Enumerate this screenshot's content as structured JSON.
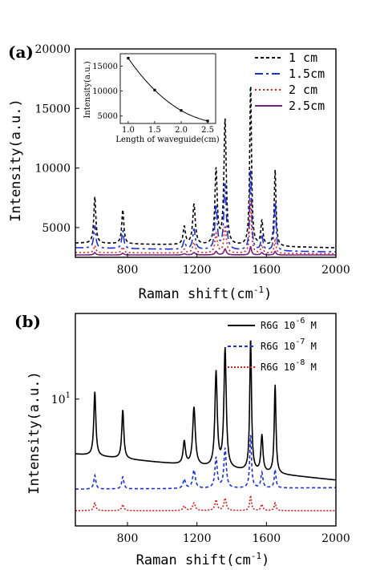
{
  "chart_data": [
    {
      "type": "line",
      "panel_label": "(a)",
      "xlabel": "Raman shift(cm",
      "xlabel_sup": "-1",
      "xlabel_close": ")",
      "ylabel": "Intensity(a.u.)",
      "xlim": [
        500,
        2000
      ],
      "ylim": [
        2500,
        20000
      ],
      "xticks": [
        800,
        1200,
        1600,
        2000
      ],
      "yticks": [
        5000,
        10000,
        15000,
        20000
      ],
      "legend_position": "top-right",
      "peaks": [
        612,
        773,
        1127,
        1183,
        1310,
        1362,
        1509,
        1574,
        1650
      ],
      "widths": [
        7,
        7,
        8,
        9,
        8,
        8,
        6,
        7,
        6
      ],
      "series": [
        {
          "name": "1 cm",
          "color": "#000000",
          "dash": "4,3",
          "baseline_start": 3700,
          "baseline_end": 3300,
          "peak_heights": [
            3900,
            2900,
            1500,
            3400,
            6300,
            10500,
            13700,
            2100,
            6400
          ]
        },
        {
          "name": "1.5cm",
          "color": "#1a2fd6",
          "dash": "10,4,3,4",
          "baseline_start": 3300,
          "baseline_end": 2950,
          "peak_heights": [
            1900,
            1500,
            700,
            1700,
            3700,
            5500,
            6800,
            1300,
            4100
          ]
        },
        {
          "name": "2 cm",
          "color": "#d81e1e",
          "dash": "2,3",
          "baseline_start": 2900,
          "baseline_end": 2800,
          "peak_heights": [
            600,
            500,
            300,
            900,
            1600,
            2300,
            4500,
            700,
            1100
          ]
        },
        {
          "name": "2.5cm",
          "color": "#7b1f7e",
          "dash": "",
          "baseline_start": 2700,
          "baseline_end": 2700,
          "peak_heights": [
            200,
            150,
            100,
            200,
            300,
            500,
            700,
            200,
            300
          ]
        }
      ],
      "inset": {
        "xlabel": "Length of waveguide(cm)",
        "ylabel": "Intensity(a.u.)",
        "xlim": [
          0.85,
          2.65
        ],
        "ylim": [
          3500,
          17500
        ],
        "xticks": [
          1.0,
          1.5,
          2.0,
          2.5
        ],
        "yticks": [
          5000,
          10000,
          15000
        ],
        "x": [
          1.0,
          1.5,
          2.0,
          2.5
        ],
        "y": [
          16600,
          10200,
          6100,
          4000
        ]
      }
    },
    {
      "type": "line",
      "panel_label": "(b)",
      "xlabel": "Raman shift(cm",
      "xlabel_sup": "-1",
      "xlabel_close": ")",
      "ylabel": "Intensity(a.u.)",
      "xlim": [
        500,
        2000
      ],
      "yscale": "log",
      "ytick_label_base": "10",
      "ytick_label_exp": "1",
      "ytick_value": 10,
      "ylim_log": [
        0.17,
        1.56
      ],
      "xticks": [
        800,
        1200,
        1600,
        2000
      ],
      "legend_position": "top-right",
      "peaks": [
        612,
        773,
        1127,
        1183,
        1310,
        1362,
        1509,
        1574,
        1650
      ],
      "widths": [
        7,
        7,
        8,
        9,
        8,
        8,
        6,
        7,
        6
      ],
      "series": [
        {
          "name_prefix": "R6G 10",
          "name_exp": "-6",
          "name_suffix": " M",
          "color": "#000000",
          "dash": "",
          "baseline_start": 0.64,
          "baseline_end": 0.47,
          "peak_heights": [
            0.42,
            0.32,
            0.15,
            0.38,
            0.62,
            0.78,
            0.87,
            0.24,
            0.58
          ]
        },
        {
          "name_prefix": "R6G 10",
          "name_exp": "-7",
          "name_suffix": " M",
          "color": "#1a2fd6",
          "dash": "4,3",
          "baseline_start": 0.41,
          "baseline_end": 0.42,
          "peak_heights": [
            0.09,
            0.08,
            0.06,
            0.12,
            0.2,
            0.26,
            0.35,
            0.1,
            0.12
          ]
        },
        {
          "name_prefix": "R6G 10",
          "name_exp": "-8",
          "name_suffix": " M",
          "color": "#d81e1e",
          "dash": "2,2",
          "baseline_start": 0.27,
          "baseline_end": 0.27,
          "peak_heights": [
            0.05,
            0.04,
            0.03,
            0.05,
            0.07,
            0.08,
            0.1,
            0.04,
            0.05
          ]
        }
      ]
    }
  ]
}
